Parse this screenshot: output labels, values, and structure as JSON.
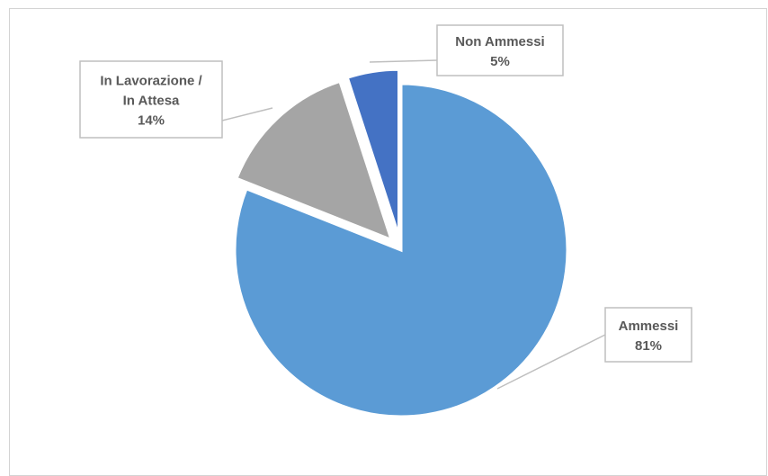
{
  "chart_data": {
    "type": "pie",
    "title": "",
    "start_angle_deg": 0,
    "direction": "clockwise",
    "slices": [
      {
        "label_lines": [
          "Ammessi"
        ],
        "value": 81,
        "value_label": "81%",
        "color": "#5b9bd5",
        "exploded": false
      },
      {
        "label_lines": [
          "In Lavorazione /",
          "In Attesa"
        ],
        "value": 14,
        "value_label": "14%",
        "color": "#a5a5a5",
        "exploded": true
      },
      {
        "label_lines": [
          "Non Ammessi"
        ],
        "value": 5,
        "value_label": "5%",
        "color": "#4472c4",
        "exploded": true
      }
    ],
    "legend": "none",
    "data_labels": "callouts"
  }
}
